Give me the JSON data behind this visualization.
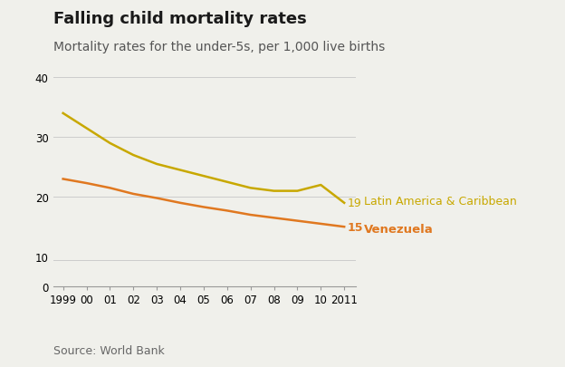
{
  "title": "Falling child mortality rates",
  "subtitle": "Mortality rates for the under-5s, per 1,000 live births",
  "source": "Source: World Bank",
  "x_years": [
    1999,
    2000,
    2001,
    2002,
    2003,
    2004,
    2005,
    2006,
    2007,
    2008,
    2009,
    2010,
    2011
  ],
  "x_labels": [
    "1999",
    "00",
    "01",
    "02",
    "03",
    "04",
    "05",
    "06",
    "07",
    "08",
    "09",
    "10",
    "2011"
  ],
  "latam_values": [
    34.0,
    31.5,
    29.0,
    27.0,
    25.5,
    24.5,
    23.5,
    22.5,
    21.5,
    21.0,
    21.0,
    22.0,
    19.0
  ],
  "venezuela_values": [
    23.0,
    22.3,
    21.5,
    20.5,
    19.8,
    19.0,
    18.3,
    17.7,
    17.0,
    16.5,
    16.0,
    15.5,
    15.0
  ],
  "latam_color": "#C8A800",
  "venezuela_color": "#E07820",
  "latam_label": "Latin America & Caribbean",
  "venezuela_label": "Venezuela",
  "latam_end_value": "19",
  "venezuela_end_value": "15",
  "ylim_main": [
    10,
    42
  ],
  "yticks_main": [
    10,
    20,
    30,
    40
  ],
  "background_color": "#F0F0EB",
  "grid_color": "#CCCCCC",
  "title_fontsize": 13,
  "subtitle_fontsize": 10,
  "source_fontsize": 9,
  "line_width": 1.8
}
